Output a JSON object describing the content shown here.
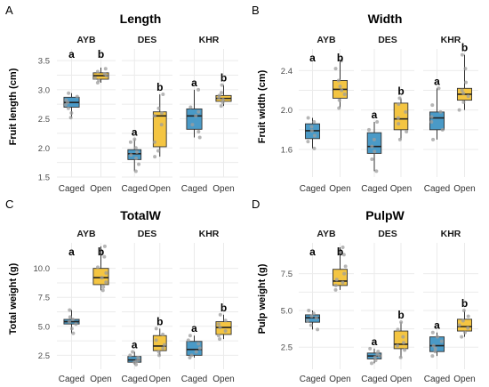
{
  "chart_data": [
    {
      "panel_label": "A",
      "type": "box",
      "title": "Length",
      "ylabel": "Fruit length (cm)",
      "yticks": [
        1.5,
        2.0,
        2.5,
        3.0,
        3.5
      ],
      "ytick_labels": [
        "1.5",
        "2.0",
        "2.5",
        "3.0",
        "3.5"
      ],
      "ylim": [
        1.5,
        3.7
      ],
      "facets": [
        {
          "label": "AYB",
          "boxes": [
            {
              "x": "Caged",
              "q1": 2.7,
              "median": 2.78,
              "q3": 2.87,
              "whisker_low": 2.52,
              "whisker_high": 2.94,
              "letter": "a",
              "points": [
                2.52,
                2.6,
                2.68,
                2.74,
                2.78,
                2.82,
                2.88,
                2.94
              ]
            },
            {
              "x": "Open",
              "q1": 3.18,
              "median": 3.24,
              "q3": 3.29,
              "whisker_low": 3.12,
              "whisker_high": 3.38,
              "letter": "b",
              "points": [
                3.12,
                3.16,
                3.2,
                3.24,
                3.27,
                3.31,
                3.36
              ]
            }
          ]
        },
        {
          "label": "DES",
          "boxes": [
            {
              "x": "Caged",
              "q1": 1.8,
              "median": 1.9,
              "q3": 1.97,
              "whisker_low": 1.6,
              "whisker_high": 2.15,
              "letter": "a",
              "points": [
                1.6,
                1.72,
                1.82,
                1.88,
                1.93,
                2.0,
                2.1,
                2.15
              ]
            },
            {
              "x": "Open",
              "q1": 2.02,
              "median": 2.55,
              "q3": 2.62,
              "whisker_low": 1.85,
              "whisker_high": 2.92,
              "letter": "b",
              "points": [
                1.85,
                1.95,
                2.1,
                2.4,
                2.55,
                2.6,
                2.68,
                2.92
              ]
            }
          ]
        },
        {
          "label": "KHR",
          "boxes": [
            {
              "x": "Caged",
              "q1": 2.32,
              "median": 2.55,
              "q3": 2.67,
              "whisker_low": 2.18,
              "whisker_high": 3.0,
              "letter": "a",
              "points": [
                2.18,
                2.28,
                2.4,
                2.55,
                2.62,
                2.7,
                3.0
              ]
            },
            {
              "x": "Open",
              "q1": 2.8,
              "median": 2.85,
              "q3": 2.9,
              "whisker_low": 2.72,
              "whisker_high": 3.08,
              "letter": "b",
              "points": [
                2.72,
                2.78,
                2.83,
                2.86,
                2.9,
                2.95,
                3.08
              ]
            }
          ]
        }
      ]
    },
    {
      "panel_label": "B",
      "type": "box",
      "title": "Width",
      "ylabel": "Fruit width (cm)",
      "yticks": [
        1.6,
        2.0,
        2.4
      ],
      "ytick_labels": [
        "1.6",
        "2.0",
        "2.4"
      ],
      "ylim": [
        1.32,
        2.62
      ],
      "facets": [
        {
          "label": "AYB",
          "boxes": [
            {
              "x": "Caged",
              "q1": 1.71,
              "median": 1.79,
              "q3": 1.86,
              "whisker_low": 1.61,
              "whisker_high": 1.92,
              "letter": "a",
              "points": [
                1.61,
                1.68,
                1.74,
                1.79,
                1.83,
                1.88,
                1.92
              ]
            },
            {
              "x": "Open",
              "q1": 2.12,
              "median": 2.21,
              "q3": 2.3,
              "whisker_low": 2.02,
              "whisker_high": 2.5,
              "letter": "b",
              "points": [
                2.02,
                2.1,
                2.16,
                2.2,
                2.24,
                2.3,
                2.42,
                2.5
              ]
            }
          ]
        },
        {
          "label": "DES",
          "boxes": [
            {
              "x": "Caged",
              "q1": 1.56,
              "median": 1.63,
              "q3": 1.77,
              "whisker_low": 1.38,
              "whisker_high": 1.88,
              "letter": "a",
              "points": [
                1.38,
                1.5,
                1.58,
                1.63,
                1.7,
                1.8,
                1.88
              ]
            },
            {
              "x": "Open",
              "q1": 1.8,
              "median": 1.91,
              "q3": 2.07,
              "whisker_low": 1.7,
              "whisker_high": 2.12,
              "letter": "b",
              "points": [
                1.7,
                1.78,
                1.86,
                1.92,
                1.98,
                2.06,
                2.12
              ]
            }
          ]
        },
        {
          "label": "KHR",
          "boxes": [
            {
              "x": "Caged",
              "q1": 1.8,
              "median": 1.92,
              "q3": 1.98,
              "whisker_low": 1.7,
              "whisker_high": 2.22,
              "letter": "a",
              "points": [
                1.7,
                1.8,
                1.88,
                1.93,
                1.98,
                2.05,
                2.22
              ]
            },
            {
              "x": "Open",
              "q1": 2.1,
              "median": 2.16,
              "q3": 2.22,
              "whisker_low": 2.0,
              "whisker_high": 2.56,
              "letter": "b",
              "points": [
                2.0,
                2.08,
                2.14,
                2.17,
                2.2,
                2.28,
                2.42,
                2.56
              ]
            }
          ]
        }
      ]
    },
    {
      "panel_label": "C",
      "type": "box",
      "title": "TotalW",
      "ylabel": "Total weight (g)",
      "yticks": [
        2.5,
        5.0,
        7.5,
        10.0
      ],
      "ytick_labels": [
        "2.5",
        "5.0",
        "7.5",
        "10.0"
      ],
      "ylim": [
        1.3,
        12.2
      ],
      "facets": [
        {
          "label": "AYB",
          "boxes": [
            {
              "x": "Caged",
              "q1": 5.2,
              "median": 5.4,
              "q3": 5.6,
              "whisker_low": 4.4,
              "whisker_high": 6.4,
              "letter": "a",
              "points": [
                4.4,
                4.8,
                5.2,
                5.4,
                5.6,
                5.8,
                6.4
              ]
            },
            {
              "x": "Open",
              "q1": 8.6,
              "median": 9.2,
              "q3": 10.0,
              "whisker_low": 8.1,
              "whisker_high": 11.9,
              "letter": "b",
              "points": [
                8.1,
                8.4,
                8.8,
                9.2,
                9.6,
                10.1,
                11.0,
                11.9
              ]
            }
          ]
        },
        {
          "label": "DES",
          "boxes": [
            {
              "x": "Caged",
              "q1": 1.9,
              "median": 2.1,
              "q3": 2.4,
              "whisker_low": 1.7,
              "whisker_high": 2.8,
              "letter": "a",
              "points": [
                1.7,
                1.9,
                2.0,
                2.1,
                2.3,
                2.5,
                2.8
              ]
            },
            {
              "x": "Open",
              "q1": 2.9,
              "median": 3.3,
              "q3": 4.2,
              "whisker_low": 2.5,
              "whisker_high": 4.8,
              "letter": "b",
              "points": [
                2.5,
                2.8,
                3.1,
                3.4,
                3.8,
                4.3,
                4.8
              ]
            }
          ]
        },
        {
          "label": "KHR",
          "boxes": [
            {
              "x": "Caged",
              "q1": 2.5,
              "median": 3.0,
              "q3": 3.7,
              "whisker_low": 2.3,
              "whisker_high": 4.2,
              "letter": "a",
              "points": [
                2.3,
                2.5,
                2.8,
                3.1,
                3.5,
                3.8,
                4.2
              ]
            },
            {
              "x": "Open",
              "q1": 4.3,
              "median": 4.9,
              "q3": 5.4,
              "whisker_low": 3.9,
              "whisker_high": 6.0,
              "letter": "b",
              "points": [
                3.9,
                4.2,
                4.6,
                4.9,
                5.2,
                5.5,
                6.0
              ]
            }
          ]
        }
      ]
    },
    {
      "panel_label": "D",
      "type": "box",
      "title": "PulpW",
      "ylabel": "Pulp weight (g)",
      "yticks": [
        2.5,
        5.0,
        7.5
      ],
      "ytick_labels": [
        "2.5",
        "5.0",
        "7.5"
      ],
      "ylim": [
        1.0,
        9.6
      ],
      "facets": [
        {
          "label": "AYB",
          "boxes": [
            {
              "x": "Caged",
              "q1": 4.2,
              "median": 4.5,
              "q3": 4.7,
              "whisker_low": 3.7,
              "whisker_high": 5.0,
              "letter": "a",
              "points": [
                3.7,
                4.0,
                4.3,
                4.5,
                4.6,
                4.8,
                5.0
              ]
            },
            {
              "x": "Open",
              "q1": 6.7,
              "median": 7.0,
              "q3": 7.8,
              "whisker_low": 6.4,
              "whisker_high": 9.3,
              "letter": "b",
              "points": [
                6.4,
                6.7,
                6.9,
                7.1,
                7.5,
                8.0,
                8.8,
                9.3
              ]
            }
          ]
        },
        {
          "label": "DES",
          "boxes": [
            {
              "x": "Caged",
              "q1": 1.7,
              "median": 1.9,
              "q3": 2.1,
              "whisker_low": 1.4,
              "whisker_high": 2.4,
              "letter": "a",
              "points": [
                1.4,
                1.6,
                1.8,
                1.9,
                2.0,
                2.2,
                2.4
              ]
            },
            {
              "x": "Open",
              "q1": 2.4,
              "median": 2.7,
              "q3": 3.6,
              "whisker_low": 1.8,
              "whisker_high": 4.2,
              "letter": "b",
              "points": [
                1.8,
                2.3,
                2.6,
                2.8,
                3.2,
                3.7,
                4.2
              ]
            }
          ]
        },
        {
          "label": "KHR",
          "boxes": [
            {
              "x": "Caged",
              "q1": 2.2,
              "median": 2.6,
              "q3": 3.2,
              "whisker_low": 1.9,
              "whisker_high": 3.5,
              "letter": "a",
              "points": [
                1.9,
                2.2,
                2.4,
                2.6,
                2.9,
                3.2,
                3.5
              ]
            },
            {
              "x": "Open",
              "q1": 3.6,
              "median": 3.9,
              "q3": 4.4,
              "whisker_low": 3.2,
              "whisker_high": 5.0,
              "letter": "b",
              "points": [
                3.2,
                3.5,
                3.8,
                4.0,
                4.3,
                4.6,
                5.0
              ]
            }
          ]
        }
      ]
    }
  ],
  "colors": {
    "Caged": "#4a9ac7",
    "Open": "#f4c542",
    "grid": "#ebebeb",
    "point": "#9e9e9e"
  }
}
